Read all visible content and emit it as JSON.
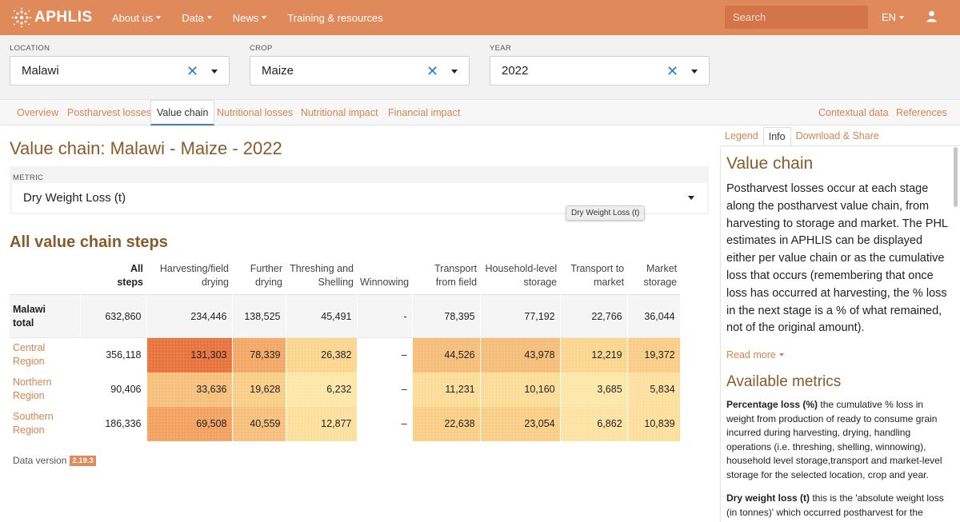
{
  "brand": {
    "name": "APHLIS",
    "icon": "aphlis-logo-icon"
  },
  "nav": [
    {
      "label": "About us",
      "dropdown": true
    },
    {
      "label": "Data",
      "dropdown": true
    },
    {
      "label": "News",
      "dropdown": true
    },
    {
      "label": "Training & resources",
      "dropdown": false
    }
  ],
  "search": {
    "placeholder": "Search",
    "icon": "search-icon"
  },
  "language": "EN",
  "user_icon": "user-icon",
  "filters": [
    {
      "label": "LOCATION",
      "value": "Malawi"
    },
    {
      "label": "CROP",
      "value": "Maize"
    },
    {
      "label": "YEAR",
      "value": "2022"
    }
  ],
  "tabs": {
    "left": [
      "Overview",
      "Postharvest losses",
      "Value chain",
      "Nutritional losses",
      "Nutritional impact",
      "Financial impact"
    ],
    "active": "Value chain",
    "right": [
      "Contextual data",
      "References"
    ]
  },
  "main": {
    "title": "Value chain: Malawi - Maize - 2022",
    "metric_label": "METRIC",
    "metric_value": "Dry Weight Loss (t)",
    "tooltip": "Dry Weight Loss (t)",
    "subtitle": "All value chain steps"
  },
  "table": {
    "columns": [
      {
        "l1": "",
        "l2": ""
      },
      {
        "l1": "All",
        "l2": "steps"
      },
      {
        "l1": "Harvesting/field",
        "l2": "drying"
      },
      {
        "l1": "Further",
        "l2": "drying"
      },
      {
        "l1": "Threshing and",
        "l2": "Shelling"
      },
      {
        "l1": "",
        "l2": "Winnowing"
      },
      {
        "l1": "Transport",
        "l2": "from field"
      },
      {
        "l1": "Household-level",
        "l2": "storage"
      },
      {
        "l1": "Transport to",
        "l2": "market"
      },
      {
        "l1": "Market",
        "l2": "storage"
      }
    ],
    "total": {
      "name1": "Malawi",
      "name2": "total",
      "values": [
        "632,860",
        "234,446",
        "138,525",
        "45,491",
        "-",
        "78,395",
        "77,192",
        "22,766",
        "36,044"
      ]
    },
    "regions": [
      {
        "name1": "Central",
        "name2": "Region",
        "values": [
          "356,118",
          "131,303",
          "78,339",
          "26,382",
          "–",
          "44,526",
          "43,978",
          "12,219",
          "19,372"
        ],
        "colors": [
          "",
          "#e8733f",
          "#f3a868",
          "#fad68e",
          "",
          "#f6be7a",
          "#f6be7a",
          "#fad68e",
          "#f9cd86"
        ]
      },
      {
        "name1": "Northern",
        "name2": "Region",
        "values": [
          "90,406",
          "33,636",
          "19,628",
          "6,232",
          "–",
          "11,231",
          "10,160",
          "3,685",
          "5,834"
        ],
        "colors": [
          "",
          "#f7c07c",
          "#f9cf88",
          "#fde7a8",
          "",
          "#fbdc98",
          "#fbdc98",
          "#fde7a8",
          "#fde0a0"
        ]
      },
      {
        "name1": "Southern",
        "name2": "Region",
        "values": [
          "186,336",
          "69,508",
          "40,559",
          "12,877",
          "–",
          "22,638",
          "23,054",
          "6,862",
          "10,839"
        ],
        "colors": [
          "",
          "#f3a262",
          "#f7c07c",
          "#fcdf9d",
          "",
          "#f9cf88",
          "#f9cf88",
          "#fde3a3",
          "#fcdf9d"
        ]
      }
    ]
  },
  "data_version": {
    "label": "Data version",
    "value": "2.19.3"
  },
  "right_panel": {
    "tabs": [
      "Legend",
      "Info",
      "Download & Share"
    ],
    "active": "Info",
    "title": "Value chain",
    "body": "Postharvest losses occur at each stage along the postharvest value chain, from harvesting to storage and market. The PHL estimates in APHLIS can be displayed either per value chain or as the cumulative loss that occurs (remembering that once loss has occurred at harvesting, the % loss in the next stage is a % of what remained, not of the original amount).",
    "read_more": "Read more",
    "metrics_title": "Available metrics",
    "metric1_name": "Percentage loss (%)",
    "metric1_text": " the cumulative % loss in weight from production of ready to consume grain incurred during harvesting, drying, handling operations (i.e. threshing, shelling, winnowing), household level storage,transport and market-level storage for the selected location, crop and year.",
    "metric2_name": "Dry weight loss (t)",
    "metric2_text": " this is the 'absolute weight loss (in tonnes)' which occurred postharvest for the selected"
  }
}
